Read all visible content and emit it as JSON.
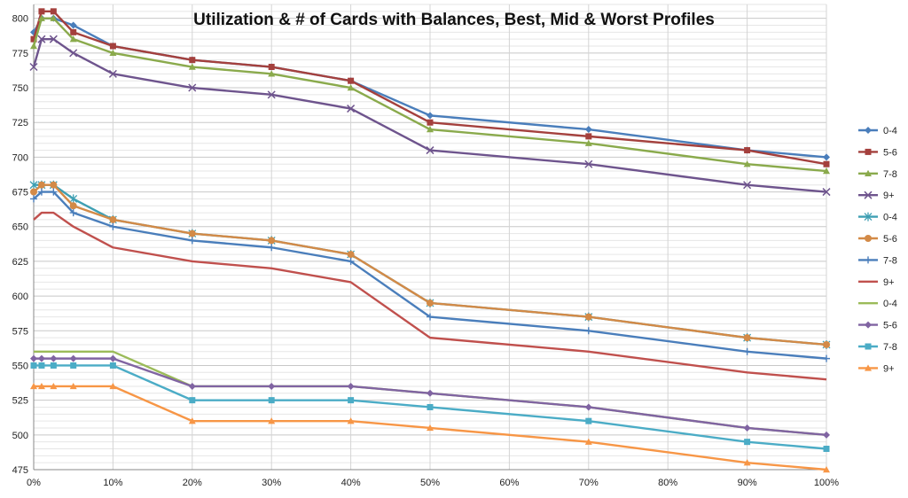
{
  "chart_data": {
    "type": "line",
    "title": "Utilization & # of Cards with Balances, Best, Mid & Worst Profiles",
    "xlabel": "",
    "ylabel": "",
    "x": [
      0,
      1,
      2.5,
      5,
      10,
      20,
      30,
      40,
      50,
      70,
      90,
      100
    ],
    "x_tick_values": [
      0,
      10,
      20,
      30,
      40,
      50,
      60,
      70,
      80,
      90,
      100
    ],
    "x_tick_labels": [
      "0%",
      "10%",
      "20%",
      "30%",
      "40%",
      "50%",
      "60%",
      "70%",
      "80%",
      "90%",
      "100%"
    ],
    "ylim": [
      475,
      810
    ],
    "y_ticks": [
      475,
      500,
      525,
      550,
      575,
      600,
      625,
      650,
      675,
      700,
      725,
      750,
      775,
      800
    ],
    "grid": true,
    "legend_position": "right",
    "series": [
      {
        "name": "0-4",
        "color": "#4A7EBB",
        "marker": "diamond",
        "values": [
          790,
          800,
          800,
          795,
          780,
          770,
          765,
          755,
          730,
          720,
          705,
          700
        ]
      },
      {
        "name": "5-6",
        "color": "#A4403D",
        "marker": "square",
        "values": [
          785,
          805,
          805,
          790,
          780,
          770,
          765,
          755,
          725,
          715,
          705,
          695
        ]
      },
      {
        "name": "7-8",
        "color": "#8AAA4C",
        "marker": "triangle",
        "values": [
          780,
          800,
          800,
          785,
          775,
          765,
          760,
          750,
          720,
          710,
          695,
          690
        ]
      },
      {
        "name": "9+",
        "color": "#6E548D",
        "marker": "x",
        "values": [
          765,
          785,
          785,
          775,
          760,
          750,
          745,
          735,
          705,
          695,
          680,
          675
        ]
      },
      {
        "name": "0-4",
        "color": "#3E9FB3",
        "marker": "star",
        "values": [
          680,
          680,
          680,
          670,
          655,
          645,
          640,
          630,
          595,
          585,
          570,
          565
        ]
      },
      {
        "name": "5-6",
        "color": "#D38A47",
        "marker": "circle",
        "values": [
          675,
          680,
          680,
          665,
          655,
          645,
          640,
          630,
          595,
          585,
          570,
          565
        ]
      },
      {
        "name": "7-8",
        "color": "#4A7EBB",
        "marker": "plus",
        "values": [
          670,
          675,
          675,
          660,
          650,
          640,
          635,
          625,
          585,
          575,
          560,
          555
        ]
      },
      {
        "name": "9+",
        "color": "#C0504D",
        "marker": "none",
        "values": [
          655,
          660,
          660,
          650,
          635,
          625,
          620,
          610,
          570,
          560,
          545,
          540
        ]
      },
      {
        "name": "0-4",
        "color": "#9BBB59",
        "marker": "none",
        "values": [
          560,
          560,
          560,
          560,
          560,
          535,
          535,
          535,
          530,
          520,
          505,
          500
        ]
      },
      {
        "name": "5-6",
        "color": "#8064A2",
        "marker": "diamond",
        "values": [
          555,
          555,
          555,
          555,
          555,
          535,
          535,
          535,
          530,
          520,
          505,
          500
        ]
      },
      {
        "name": "7-8",
        "color": "#4BACC6",
        "marker": "square",
        "values": [
          550,
          550,
          550,
          550,
          550,
          525,
          525,
          525,
          520,
          510,
          495,
          490
        ]
      },
      {
        "name": "9+",
        "color": "#F79646",
        "marker": "triangle",
        "values": [
          535,
          535,
          535,
          535,
          535,
          510,
          510,
          510,
          505,
          495,
          480,
          475
        ]
      }
    ]
  }
}
